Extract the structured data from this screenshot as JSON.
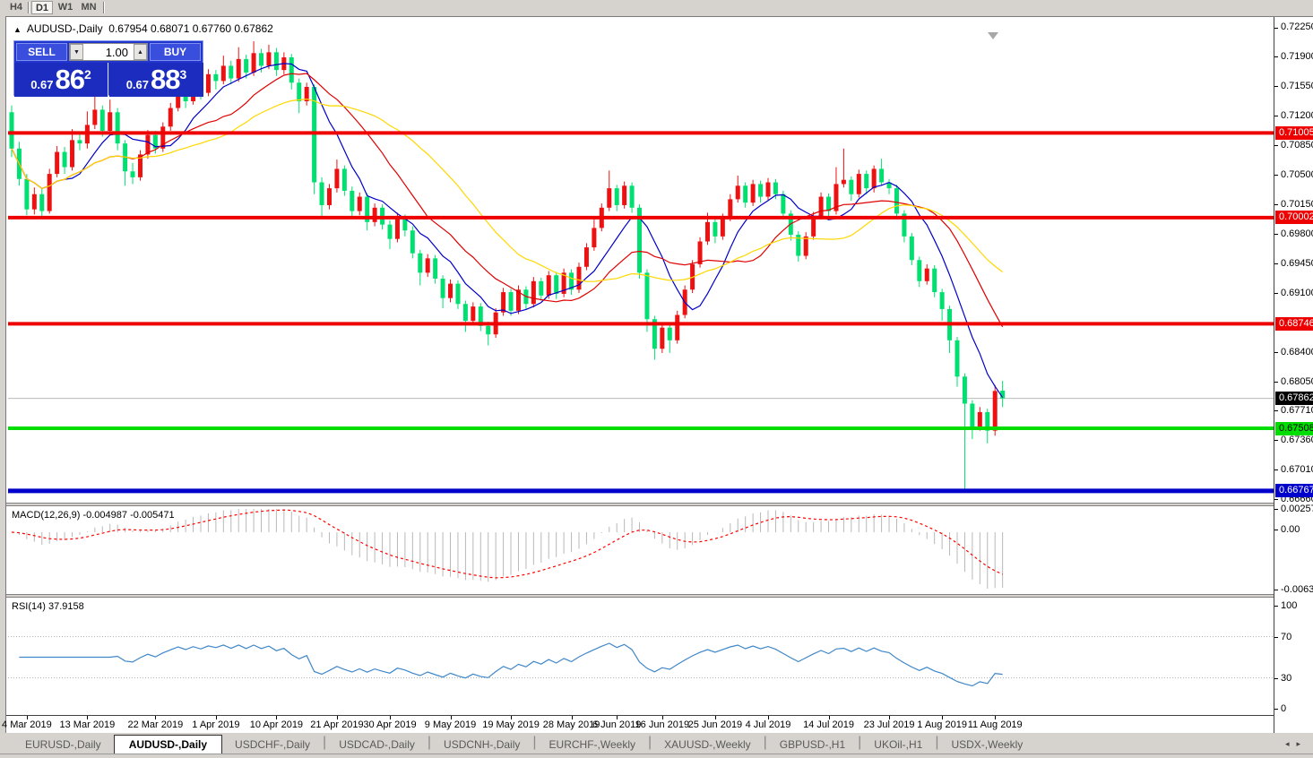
{
  "toolbar": {
    "timeframes": [
      "H4",
      "D1",
      "W1",
      "MN"
    ],
    "active": "D1"
  },
  "chart_header": {
    "collapse_icon": "black-up-triangle",
    "title": "AUDUSD-,Daily",
    "ohlc_text": "0.67954 0.68071 0.67760 0.67862"
  },
  "trade_panel": {
    "sell_label": "SELL",
    "buy_label": "BUY",
    "volume": "1.00",
    "sell_small": "0.67",
    "sell_big": "86",
    "sell_sup": "2",
    "buy_small": "0.67",
    "buy_big": "88",
    "buy_sup": "3",
    "panel_color": "#2235cd"
  },
  "chart_data": {
    "type": "candlestick",
    "symbol": "AUDUSD-,Daily",
    "current_bar": {
      "open": 0.67954,
      "high": 0.68071,
      "low": 0.6776,
      "close": 0.67862
    },
    "colors": {
      "up_candle": "#ee1111",
      "down_candle": "#00e070",
      "ma_fast": "#0000c8",
      "ma_mid": "#e00000",
      "ma_slow": "#ffd700",
      "current_price_line": "#b8b8b8",
      "shift_marker": "#a8a8a8"
    },
    "moving_averages": [
      {
        "name": "ma-fast-blue",
        "period": 8,
        "color": "#0000c8"
      },
      {
        "name": "ma-mid-red",
        "period": 16,
        "color": "#e00000"
      },
      {
        "name": "ma-slow-yellow",
        "period": 28,
        "color": "#ffd700"
      }
    ],
    "hlines": [
      {
        "price": 0.71005,
        "color": "#ee0000",
        "width": 4
      },
      {
        "price": 0.70002,
        "color": "#ee0000",
        "width": 4
      },
      {
        "price": 0.68746,
        "color": "#ee0000",
        "width": 4
      },
      {
        "price": 0.67508,
        "color": "#00dd00",
        "width": 4
      },
      {
        "price": 0.66767,
        "color": "#0000cc",
        "width": 5
      }
    ],
    "current_price": 0.67862,
    "price_axis_ticks": [
      "0.72250",
      "0.71900",
      "0.71550",
      "0.71200",
      "0.70850",
      "0.70500",
      "0.70150",
      "0.69800",
      "0.69450",
      "0.69100",
      "0.68400",
      "0.68050",
      "0.67710",
      "0.67360",
      "0.67010",
      "0.66660"
    ],
    "price_badges": [
      {
        "text": "0.71005",
        "price": 0.71005,
        "bg": "#ee0000",
        "fg": "#ffffff"
      },
      {
        "text": "0.70002",
        "price": 0.70002,
        "bg": "#ee0000",
        "fg": "#ffffff"
      },
      {
        "text": "0.68746",
        "price": 0.68746,
        "bg": "#ee0000",
        "fg": "#ffffff"
      },
      {
        "text": "0.67862",
        "price": 0.67862,
        "bg": "#000000",
        "fg": "#ffffff"
      },
      {
        "text": "0.67508",
        "price": 0.67508,
        "bg": "#00dd00",
        "fg": "#000000"
      },
      {
        "text": "0.66767",
        "price": 0.66767,
        "bg": "#0000cc",
        "fg": "#ffffff"
      }
    ],
    "date_ticks": [
      {
        "i": 2,
        "label": "4 Mar 2019"
      },
      {
        "i": 10,
        "label": "13 Mar 2019"
      },
      {
        "i": 19,
        "label": "22 Mar 2019"
      },
      {
        "i": 27,
        "label": "1 Apr 2019"
      },
      {
        "i": 35,
        "label": "10 Apr 2019"
      },
      {
        "i": 43,
        "label": "21 Apr 2019"
      },
      {
        "i": 50,
        "label": "30 Apr 2019"
      },
      {
        "i": 58,
        "label": "9 May 2019"
      },
      {
        "i": 66,
        "label": "19 May 2019"
      },
      {
        "i": 74,
        "label": "28 May 2019"
      },
      {
        "i": 80,
        "label": "6 Jun 2019"
      },
      {
        "i": 86,
        "label": "16 Jun 2019"
      },
      {
        "i": 93,
        "label": "25 Jun 2019"
      },
      {
        "i": 100,
        "label": "4 Jul 2019"
      },
      {
        "i": 108,
        "label": "14 Jul 2019"
      },
      {
        "i": 116,
        "label": "23 Jul 2019"
      },
      {
        "i": 123,
        "label": "1 Aug 2019"
      },
      {
        "i": 130,
        "label": "11 Aug 2019"
      }
    ],
    "candles": [
      [
        0.7125,
        0.7133,
        0.7072,
        0.7082
      ],
      [
        0.7082,
        0.709,
        0.7038,
        0.7046
      ],
      [
        0.7046,
        0.7052,
        0.7003,
        0.701
      ],
      [
        0.701,
        0.7036,
        0.7004,
        0.7028
      ],
      [
        0.7028,
        0.7034,
        0.7,
        0.7008
      ],
      [
        0.7008,
        0.7058,
        0.7005,
        0.7052
      ],
      [
        0.7052,
        0.7085,
        0.7048,
        0.7078
      ],
      [
        0.7078,
        0.7084,
        0.7052,
        0.706
      ],
      [
        0.706,
        0.7105,
        0.7056,
        0.7092
      ],
      [
        0.7092,
        0.71,
        0.708,
        0.7088
      ],
      [
        0.7088,
        0.7126,
        0.7082,
        0.711
      ],
      [
        0.711,
        0.7152,
        0.7105,
        0.7128
      ],
      [
        0.7128,
        0.7133,
        0.7096,
        0.7103
      ],
      [
        0.7103,
        0.714,
        0.7098,
        0.7125
      ],
      [
        0.7125,
        0.713,
        0.708,
        0.7088
      ],
      [
        0.7088,
        0.7092,
        0.7038,
        0.7055
      ],
      [
        0.7055,
        0.7065,
        0.704,
        0.7048
      ],
      [
        0.7048,
        0.708,
        0.7044,
        0.7075
      ],
      [
        0.7075,
        0.7104,
        0.707,
        0.7098
      ],
      [
        0.7098,
        0.7103,
        0.7076,
        0.7082
      ],
      [
        0.7082,
        0.7113,
        0.7078,
        0.7108
      ],
      [
        0.7108,
        0.7136,
        0.7103,
        0.713
      ],
      [
        0.713,
        0.7168,
        0.7126,
        0.7152
      ],
      [
        0.7152,
        0.7157,
        0.713,
        0.7138
      ],
      [
        0.7138,
        0.7166,
        0.7134,
        0.716
      ],
      [
        0.716,
        0.7165,
        0.714,
        0.7148
      ],
      [
        0.7148,
        0.7176,
        0.7144,
        0.717
      ],
      [
        0.717,
        0.7175,
        0.7152,
        0.7162
      ],
      [
        0.7162,
        0.7192,
        0.7158,
        0.718
      ],
      [
        0.718,
        0.7186,
        0.7158,
        0.7165
      ],
      [
        0.7165,
        0.7202,
        0.7161,
        0.7188
      ],
      [
        0.7188,
        0.7193,
        0.7165,
        0.7172
      ],
      [
        0.7172,
        0.7209,
        0.7168,
        0.7195
      ],
      [
        0.7195,
        0.72,
        0.7172,
        0.718
      ],
      [
        0.718,
        0.7205,
        0.7176,
        0.7196
      ],
      [
        0.7196,
        0.7201,
        0.7168,
        0.7175
      ],
      [
        0.7175,
        0.7196,
        0.717,
        0.719
      ],
      [
        0.719,
        0.7194,
        0.7152,
        0.716
      ],
      [
        0.716,
        0.7165,
        0.7124,
        0.7138
      ],
      [
        0.7138,
        0.716,
        0.7133,
        0.7155
      ],
      [
        0.7155,
        0.7158,
        0.7028,
        0.7042
      ],
      [
        0.7042,
        0.7048,
        0.7,
        0.7015
      ],
      [
        0.7015,
        0.704,
        0.701,
        0.7035
      ],
      [
        0.7035,
        0.7069,
        0.703,
        0.7058
      ],
      [
        0.7058,
        0.7062,
        0.7026,
        0.7032
      ],
      [
        0.7032,
        0.7037,
        0.7001,
        0.7008
      ],
      [
        0.7008,
        0.703,
        0.7003,
        0.7025
      ],
      [
        0.7025,
        0.7029,
        0.6985,
        0.6995
      ],
      [
        0.6995,
        0.7017,
        0.699,
        0.7012
      ],
      [
        0.7012,
        0.7016,
        0.6986,
        0.6992
      ],
      [
        0.6992,
        0.6997,
        0.6963,
        0.6975
      ],
      [
        0.6975,
        0.7006,
        0.6971,
        0.7
      ],
      [
        0.7,
        0.7004,
        0.6978,
        0.6985
      ],
      [
        0.6985,
        0.699,
        0.6952,
        0.6958
      ],
      [
        0.6958,
        0.6962,
        0.692,
        0.6935
      ],
      [
        0.6935,
        0.6957,
        0.693,
        0.6952
      ],
      [
        0.6952,
        0.6956,
        0.6922,
        0.6928
      ],
      [
        0.6928,
        0.6932,
        0.6893,
        0.6905
      ],
      [
        0.6905,
        0.6927,
        0.69,
        0.6922
      ],
      [
        0.6922,
        0.6926,
        0.6892,
        0.6898
      ],
      [
        0.6898,
        0.6902,
        0.6865,
        0.6878
      ],
      [
        0.6878,
        0.69,
        0.6873,
        0.6895
      ],
      [
        0.6895,
        0.6899,
        0.6866,
        0.6872
      ],
      [
        0.6872,
        0.6877,
        0.6849,
        0.6862
      ],
      [
        0.6862,
        0.6893,
        0.6858,
        0.6888
      ],
      [
        0.6888,
        0.6917,
        0.6884,
        0.6912
      ],
      [
        0.6912,
        0.6916,
        0.6884,
        0.689
      ],
      [
        0.689,
        0.692,
        0.6886,
        0.6915
      ],
      [
        0.6915,
        0.6919,
        0.6892,
        0.6898
      ],
      [
        0.6898,
        0.693,
        0.6894,
        0.6925
      ],
      [
        0.6925,
        0.6929,
        0.6902,
        0.6908
      ],
      [
        0.6908,
        0.6937,
        0.6904,
        0.6932
      ],
      [
        0.6932,
        0.6936,
        0.6904,
        0.691
      ],
      [
        0.691,
        0.694,
        0.6906,
        0.6935
      ],
      [
        0.6935,
        0.6939,
        0.6909,
        0.6915
      ],
      [
        0.6915,
        0.6947,
        0.6911,
        0.6942
      ],
      [
        0.6942,
        0.697,
        0.6938,
        0.6965
      ],
      [
        0.6965,
        0.7,
        0.6961,
        0.6988
      ],
      [
        0.6988,
        0.7017,
        0.6984,
        0.7012
      ],
      [
        0.7012,
        0.7056,
        0.7008,
        0.7035
      ],
      [
        0.7035,
        0.7039,
        0.7008,
        0.7015
      ],
      [
        0.7015,
        0.7043,
        0.7011,
        0.7038
      ],
      [
        0.7038,
        0.7042,
        0.7006,
        0.7012
      ],
      [
        0.7012,
        0.7016,
        0.6928,
        0.6935
      ],
      [
        0.6935,
        0.6939,
        0.6865,
        0.688
      ],
      [
        0.688,
        0.6884,
        0.6832,
        0.6845
      ],
      [
        0.6845,
        0.6875,
        0.684,
        0.687
      ],
      [
        0.687,
        0.6874,
        0.684,
        0.6855
      ],
      [
        0.6855,
        0.689,
        0.6851,
        0.6885
      ],
      [
        0.6885,
        0.692,
        0.6881,
        0.6915
      ],
      [
        0.6915,
        0.695,
        0.6911,
        0.6945
      ],
      [
        0.6945,
        0.6977,
        0.6941,
        0.6972
      ],
      [
        0.6972,
        0.7006,
        0.6968,
        0.6995
      ],
      [
        0.6995,
        0.6999,
        0.697,
        0.6978
      ],
      [
        0.6978,
        0.7005,
        0.6974,
        0.7
      ],
      [
        0.7,
        0.7028,
        0.6996,
        0.7022
      ],
      [
        0.7022,
        0.705,
        0.7018,
        0.7038
      ],
      [
        0.7038,
        0.7042,
        0.7012,
        0.7018
      ],
      [
        0.7018,
        0.7045,
        0.7014,
        0.704
      ],
      [
        0.704,
        0.7044,
        0.7018,
        0.7025
      ],
      [
        0.7025,
        0.7047,
        0.7021,
        0.7042
      ],
      [
        0.7042,
        0.7046,
        0.7022,
        0.7028
      ],
      [
        0.7028,
        0.7032,
        0.6998,
        0.7005
      ],
      [
        0.7005,
        0.7009,
        0.6973,
        0.698
      ],
      [
        0.698,
        0.6984,
        0.6948,
        0.6955
      ],
      [
        0.6955,
        0.6983,
        0.6951,
        0.6978
      ],
      [
        0.6978,
        0.7007,
        0.6974,
        0.7002
      ],
      [
        0.7002,
        0.703,
        0.6998,
        0.7025
      ],
      [
        0.7025,
        0.7029,
        0.7002,
        0.7008
      ],
      [
        0.7008,
        0.706,
        0.7004,
        0.704
      ],
      [
        0.704,
        0.7082,
        0.7036,
        0.7045
      ],
      [
        0.7045,
        0.7049,
        0.702,
        0.7028
      ],
      [
        0.7028,
        0.7057,
        0.7024,
        0.7052
      ],
      [
        0.7052,
        0.7056,
        0.7028,
        0.7035
      ],
      [
        0.7035,
        0.7062,
        0.703,
        0.7058
      ],
      [
        0.7058,
        0.707,
        0.7038,
        0.7042
      ],
      [
        0.7042,
        0.7046,
        0.7028,
        0.7035
      ],
      [
        0.7035,
        0.7039,
        0.6998,
        0.7005
      ],
      [
        0.7005,
        0.7009,
        0.6971,
        0.6978
      ],
      [
        0.6978,
        0.6982,
        0.6944,
        0.695
      ],
      [
        0.695,
        0.6954,
        0.6918,
        0.6925
      ],
      [
        0.6925,
        0.6945,
        0.6921,
        0.694
      ],
      [
        0.694,
        0.6944,
        0.6906,
        0.6912
      ],
      [
        0.6912,
        0.6916,
        0.6878,
        0.6892
      ],
      [
        0.6892,
        0.6896,
        0.684,
        0.6855
      ],
      [
        0.6855,
        0.6859,
        0.68,
        0.6812
      ],
      [
        0.6812,
        0.6816,
        0.6677,
        0.678
      ],
      [
        0.678,
        0.6784,
        0.6738,
        0.6752
      ],
      [
        0.6752,
        0.6776,
        0.6748,
        0.677
      ],
      [
        0.677,
        0.6774,
        0.6733,
        0.6748
      ],
      [
        0.6748,
        0.6802,
        0.6742,
        0.6795
      ],
      [
        0.67954,
        0.68071,
        0.6776,
        0.67862
      ]
    ],
    "macd": {
      "label": "MACD(12,26,9) -0.004987 -0.005471",
      "fast": 12,
      "slow": 26,
      "signal": 9,
      "value": -0.004987,
      "signal_value": -0.005471,
      "axis_labels": [
        "0.002574",
        "0.00",
        "-0.006326"
      ],
      "axis_range": [
        -0.006326,
        0.002574
      ],
      "histogram_color": "#b8b8b8",
      "signal_color": "#ff0000"
    },
    "rsi": {
      "label": "RSI(14) 37.9158",
      "period": 14,
      "value": 37.9158,
      "axis_labels": [
        "100",
        "70",
        "30",
        "0"
      ],
      "levels": [
        70,
        30
      ],
      "line_color": "#3f87c9",
      "level_color": "#b4b4b4"
    }
  },
  "tab_bar": {
    "tabs": [
      "EURUSD-,Daily",
      "AUDUSD-,Daily",
      "USDCHF-,Daily",
      "USDCAD-,Daily",
      "USDCNH-,Daily",
      "EURCHF-,Weekly",
      "XAUUSD-,Weekly",
      "GBPUSD-,H1",
      "UKOil-,H1",
      "USDX-,Weekly"
    ],
    "active": "AUDUSD-,Daily",
    "scroll_left_icon": "left-arrow",
    "scroll_right_icon": "right-arrow"
  }
}
